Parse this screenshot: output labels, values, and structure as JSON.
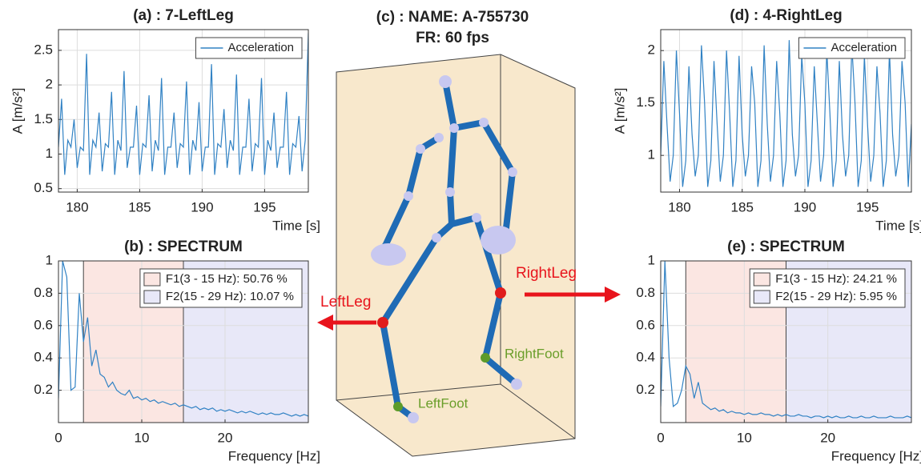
{
  "chart_data": [
    {
      "type": "line",
      "title": "(a) : 7-LeftLeg",
      "xlabel": "Time [s]",
      "ylabel": "A [m/s²]",
      "x": [
        178.5,
        178.75,
        179,
        179.25,
        179.5,
        179.75,
        180,
        180.25,
        180.5,
        180.75,
        181,
        181.25,
        181.5,
        181.75,
        182,
        182.25,
        182.5,
        182.75,
        183,
        183.25,
        183.5,
        183.75,
        184,
        184.25,
        184.5,
        184.75,
        185,
        185.25,
        185.5,
        185.75,
        186,
        186.25,
        186.5,
        186.75,
        187,
        187.25,
        187.5,
        187.75,
        188,
        188.25,
        188.5,
        188.75,
        189,
        189.25,
        189.5,
        189.75,
        190,
        190.25,
        190.5,
        190.75,
        191,
        191.25,
        191.5,
        191.75,
        192,
        192.25,
        192.5,
        192.75,
        193,
        193.25,
        193.5,
        193.75,
        194,
        194.25,
        194.5,
        194.75,
        195,
        195.25,
        195.5,
        195.75,
        196,
        196.25,
        196.5,
        196.75,
        197,
        197.25,
        197.5,
        197.75,
        198,
        198.25,
        198.5
      ],
      "series": [
        {
          "name": "Acceleration",
          "color": "#3182c4",
          "values": [
            1.1,
            1.8,
            0.7,
            1.2,
            1.1,
            1.5,
            0.8,
            1.1,
            1.05,
            2.45,
            0.7,
            1.2,
            1.1,
            1.6,
            0.75,
            1.15,
            1.1,
            1.9,
            0.7,
            1.2,
            1.05,
            2.2,
            0.8,
            1.1,
            1.1,
            1.7,
            0.7,
            1.15,
            1.1,
            1.85,
            0.75,
            1.2,
            1.05,
            2.1,
            0.7,
            1.1,
            1.1,
            1.6,
            0.8,
            1.15,
            1.1,
            2.05,
            0.7,
            1.2,
            1.05,
            1.75,
            0.75,
            1.1,
            1.1,
            2.3,
            0.7,
            1.15,
            1.1,
            1.65,
            0.8,
            1.2,
            1.05,
            2.15,
            0.7,
            1.1,
            1.1,
            1.8,
            0.75,
            1.15,
            1.1,
            2.1,
            0.7,
            1.2,
            1.05,
            1.6,
            0.8,
            1.1,
            1.1,
            1.9,
            0.7,
            1.15,
            1.1,
            1.55,
            0.75,
            1.2,
            2.75
          ]
        }
      ],
      "xlim": [
        178.5,
        198.5
      ],
      "ylim": [
        0.45,
        2.8
      ],
      "xticks": [
        180,
        185,
        190,
        195
      ],
      "yticks": [
        0.5,
        1,
        1.5,
        2,
        2.5
      ],
      "grid": true,
      "legend": "upper right"
    },
    {
      "type": "line",
      "title": "(b) : SPECTRUM",
      "xlabel": "Frequency [Hz]",
      "x": [
        0,
        0.5,
        1,
        1.5,
        2,
        2.5,
        3,
        3.5,
        4,
        4.5,
        5,
        5.5,
        6,
        6.5,
        7,
        7.5,
        8,
        8.5,
        9,
        9.5,
        10,
        10.5,
        11,
        11.5,
        12,
        12.5,
        13,
        13.5,
        14,
        14.5,
        15,
        15.5,
        16,
        16.5,
        17,
        17.5,
        18,
        18.5,
        19,
        19.5,
        20,
        20.5,
        21,
        21.5,
        22,
        22.5,
        23,
        23.5,
        24,
        24.5,
        25,
        25.5,
        26,
        26.5,
        27,
        27.5,
        28,
        28.5,
        29,
        29.5,
        30
      ],
      "series": [
        {
          "color": "#3182c4",
          "values": [
            0.15,
            1.0,
            0.9,
            0.2,
            0.22,
            0.8,
            0.5,
            0.65,
            0.35,
            0.45,
            0.3,
            0.28,
            0.22,
            0.25,
            0.2,
            0.18,
            0.17,
            0.2,
            0.15,
            0.16,
            0.14,
            0.15,
            0.13,
            0.14,
            0.12,
            0.13,
            0.12,
            0.11,
            0.12,
            0.1,
            0.11,
            0.1,
            0.09,
            0.1,
            0.08,
            0.09,
            0.08,
            0.09,
            0.07,
            0.08,
            0.07,
            0.08,
            0.07,
            0.06,
            0.07,
            0.06,
            0.07,
            0.06,
            0.05,
            0.06,
            0.05,
            0.06,
            0.05,
            0.05,
            0.06,
            0.05,
            0.04,
            0.05,
            0.04,
            0.05,
            0.04
          ]
        }
      ],
      "bands": [
        {
          "name": "F1(3 - 15 Hz): 50.76 %",
          "from": 3,
          "to": 15,
          "color": "#fbe6e2"
        },
        {
          "name": "F2(15 - 29 Hz): 10.07 %",
          "from": 15,
          "to": 30,
          "color": "#e8e8f8"
        }
      ],
      "xlim": [
        0,
        30
      ],
      "ylim": [
        0,
        1
      ],
      "xticks": [
        0,
        10,
        20
      ],
      "yticks": [
        0.2,
        0.4,
        0.6,
        0.8,
        1
      ],
      "grid": true,
      "legend": "upper right"
    },
    {
      "type": "line",
      "title": "(d) : 4-RightLeg",
      "xlabel": "Time [s]",
      "ylabel": "A [m/s²]",
      "x": [
        178.5,
        178.75,
        179,
        179.25,
        179.5,
        179.75,
        180,
        180.25,
        180.5,
        180.75,
        181,
        181.25,
        181.5,
        181.75,
        182,
        182.25,
        182.5,
        182.75,
        183,
        183.25,
        183.5,
        183.75,
        184,
        184.25,
        184.5,
        184.75,
        185,
        185.25,
        185.5,
        185.75,
        186,
        186.25,
        186.5,
        186.75,
        187,
        187.25,
        187.5,
        187.75,
        188,
        188.25,
        188.5,
        188.75,
        189,
        189.25,
        189.5,
        189.75,
        190,
        190.25,
        190.5,
        190.75,
        191,
        191.25,
        191.5,
        191.75,
        192,
        192.25,
        192.5,
        192.75,
        193,
        193.25,
        193.5,
        193.75,
        194,
        194.25,
        194.5,
        194.75,
        195,
        195.25,
        195.5,
        195.75,
        196,
        196.25,
        196.5,
        196.75,
        197,
        197.25,
        197.5,
        197.75,
        198,
        198.25,
        198.5
      ],
      "series": [
        {
          "name": "Acceleration",
          "color": "#3182c4",
          "values": [
            1.0,
            1.9,
            1.3,
            0.75,
            1.0,
            2.0,
            1.4,
            0.7,
            0.95,
            1.85,
            1.2,
            0.8,
            1.0,
            2.05,
            1.5,
            0.7,
            0.95,
            1.9,
            1.3,
            0.75,
            1.0,
            2.0,
            1.4,
            0.7,
            0.95,
            1.95,
            1.2,
            0.8,
            1.0,
            1.85,
            1.5,
            0.7,
            0.95,
            2.05,
            1.3,
            0.75,
            1.0,
            1.9,
            1.4,
            0.7,
            0.95,
            2.1,
            1.2,
            0.8,
            1.0,
            1.95,
            1.5,
            0.7,
            0.95,
            1.85,
            1.3,
            0.75,
            1.0,
            2.0,
            1.4,
            0.7,
            0.95,
            1.9,
            1.2,
            0.8,
            1.0,
            2.05,
            1.5,
            0.7,
            0.95,
            1.95,
            1.3,
            0.75,
            1.0,
            1.85,
            1.4,
            0.7,
            0.95,
            2.0,
            1.2,
            0.8,
            1.0,
            1.9,
            1.5,
            0.7,
            1.3
          ]
        }
      ],
      "xlim": [
        178.5,
        198.5
      ],
      "ylim": [
        0.65,
        2.2
      ],
      "xticks": [
        180,
        185,
        190,
        195
      ],
      "yticks": [
        1,
        1.5,
        2
      ],
      "grid": true,
      "legend": "upper right"
    },
    {
      "type": "line",
      "title": "(e) : SPECTRUM",
      "xlabel": "Frequency [Hz]",
      "x": [
        0,
        0.5,
        1,
        1.5,
        2,
        2.5,
        3,
        3.5,
        4,
        4.5,
        5,
        5.5,
        6,
        6.5,
        7,
        7.5,
        8,
        8.5,
        9,
        9.5,
        10,
        10.5,
        11,
        11.5,
        12,
        12.5,
        13,
        13.5,
        14,
        14.5,
        15,
        15.5,
        16,
        16.5,
        17,
        17.5,
        18,
        18.5,
        19,
        19.5,
        20,
        20.5,
        21,
        21.5,
        22,
        22.5,
        23,
        23.5,
        24,
        24.5,
        25,
        25.5,
        26,
        26.5,
        27,
        27.5,
        28,
        28.5,
        29,
        29.5,
        30
      ],
      "series": [
        {
          "color": "#3182c4",
          "values": [
            0.1,
            1.0,
            0.4,
            0.1,
            0.12,
            0.2,
            0.35,
            0.3,
            0.15,
            0.25,
            0.12,
            0.1,
            0.08,
            0.09,
            0.07,
            0.08,
            0.06,
            0.07,
            0.06,
            0.06,
            0.05,
            0.06,
            0.05,
            0.05,
            0.06,
            0.05,
            0.05,
            0.04,
            0.05,
            0.04,
            0.05,
            0.04,
            0.04,
            0.05,
            0.04,
            0.04,
            0.03,
            0.04,
            0.04,
            0.03,
            0.04,
            0.03,
            0.04,
            0.03,
            0.03,
            0.04,
            0.03,
            0.03,
            0.04,
            0.03,
            0.03,
            0.04,
            0.03,
            0.03,
            0.03,
            0.04,
            0.03,
            0.03,
            0.03,
            0.04,
            0.03
          ]
        }
      ],
      "bands": [
        {
          "name": "F1(3 - 15 Hz): 24.21 %",
          "from": 3,
          "to": 15,
          "color": "#fbe6e2"
        },
        {
          "name": "F2(15 - 29 Hz): 5.95 %",
          "from": 15,
          "to": 30,
          "color": "#e8e8f8"
        }
      ],
      "xlim": [
        0,
        30
      ],
      "ylim": [
        0,
        1
      ],
      "xticks": [
        0,
        10,
        20
      ],
      "yticks": [
        0.2,
        0.4,
        0.6,
        0.8,
        1
      ],
      "grid": true,
      "legend": "upper right"
    }
  ],
  "diagram": {
    "title": "(c) :  NAME: A-755730",
    "subtitle": "FR: 60 fps",
    "labels": [
      "LeftLeg",
      "RightLeg",
      "LeftFoot",
      "RightFoot"
    ]
  }
}
